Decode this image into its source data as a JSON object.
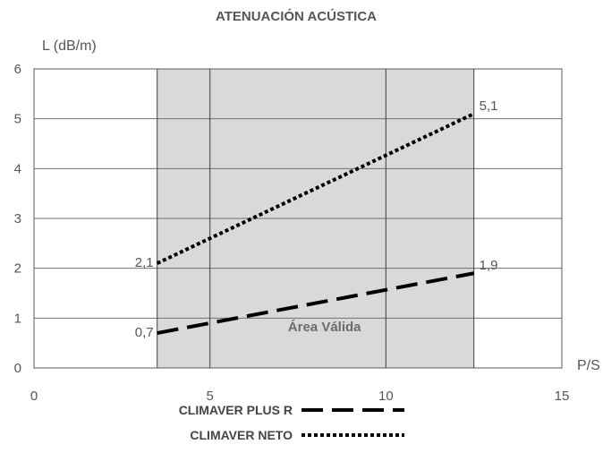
{
  "chart_data": {
    "type": "line",
    "title": "ATENUACIÓN ACÚSTICA",
    "ylabel": "L (dB/m)",
    "xlabel": "P/S",
    "xlim": [
      0,
      15
    ],
    "ylim": [
      0,
      6
    ],
    "xticks": [
      "0",
      "5",
      "10",
      "15"
    ],
    "yticks": [
      "0",
      "1",
      "2",
      "3",
      "4",
      "5",
      "6"
    ],
    "grid": true,
    "valid_area": {
      "x": [
        3.5,
        12.5
      ],
      "label": "Área Válida",
      "color": "#d9d9d9"
    },
    "series": [
      {
        "name": "CLIMAVER PLUS R",
        "style": "dashed",
        "x": [
          3.5,
          12.5
        ],
        "y": [
          0.7,
          1.9
        ],
        "point_labels": [
          "0,7",
          "1,9"
        ]
      },
      {
        "name": "CLIMAVER NETO",
        "style": "dotted",
        "x": [
          3.5,
          12.5
        ],
        "y": [
          2.1,
          5.1
        ],
        "point_labels": [
          "2,1",
          "5,1"
        ]
      }
    ],
    "legend_position": "bottom-center"
  }
}
